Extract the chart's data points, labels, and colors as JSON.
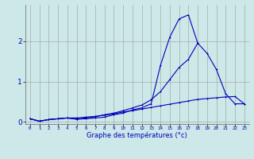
{
  "xlabel": "Graphe des températures (°c)",
  "background_color": "#cce8e8",
  "line_color": "#0000bb",
  "grid_color": "#aaaaaa",
  "hours": [
    0,
    1,
    2,
    3,
    4,
    5,
    6,
    7,
    8,
    9,
    10,
    11,
    12,
    13,
    14,
    15,
    16,
    17,
    18,
    19,
    20,
    21,
    22,
    23
  ],
  "series1": [
    0.08,
    0.02,
    0.06,
    0.08,
    0.1,
    0.07,
    0.08,
    0.1,
    0.12,
    0.18,
    0.22,
    0.3,
    0.35,
    0.45,
    1.4,
    2.1,
    2.55,
    2.65,
    1.95,
    1.7,
    1.3,
    0.7,
    0.45,
    0.45
  ],
  "series2": [
    0.08,
    0.02,
    0.06,
    0.08,
    0.1,
    0.07,
    0.1,
    0.13,
    0.18,
    0.22,
    0.28,
    0.35,
    0.42,
    0.55,
    0.75,
    1.05,
    1.35,
    1.55,
    1.95,
    2.02,
    0.0,
    0.0,
    0.0,
    0.0
  ],
  "series3": [
    0.08,
    0.02,
    0.06,
    0.08,
    0.1,
    0.1,
    0.12,
    0.14,
    0.17,
    0.2,
    0.25,
    0.28,
    0.32,
    0.36,
    0.4,
    0.44,
    0.48,
    0.52,
    0.56,
    0.58,
    0.6,
    0.62,
    0.63,
    0.45
  ],
  "series2_end": 19,
  "ylim": [
    -0.05,
    2.9
  ],
  "yticks": [
    0,
    1,
    2
  ],
  "xlim": [
    -0.5,
    23.5
  ]
}
